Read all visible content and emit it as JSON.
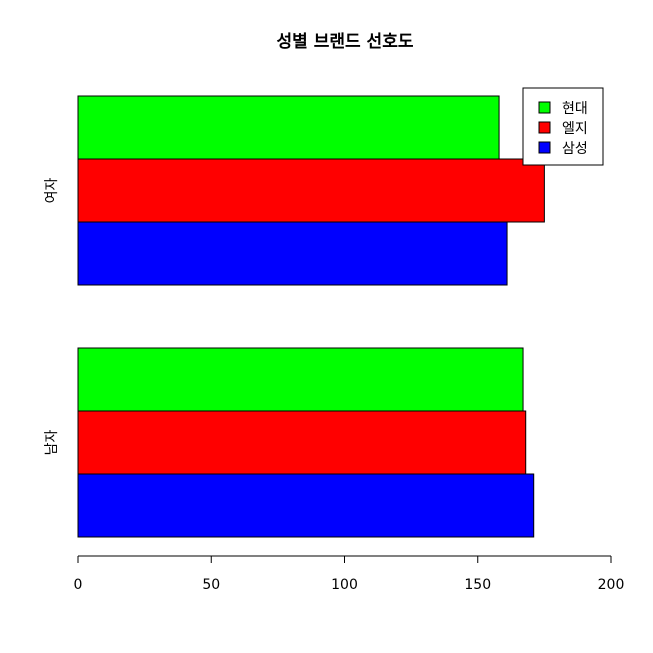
{
  "chart_data": {
    "type": "bar",
    "orientation": "horizontal",
    "title": "성별 브랜드 선호도",
    "xlabel": "",
    "ylabel": "",
    "xlim": [
      0,
      200
    ],
    "x_ticks": [
      0,
      50,
      100,
      150,
      200
    ],
    "categories": [
      "여자",
      "남자"
    ],
    "series": [
      {
        "name": "현대",
        "color": "#00ff00",
        "values": [
          158,
          167
        ]
      },
      {
        "name": "엘지",
        "color": "#ff0000",
        "values": [
          175,
          168
        ]
      },
      {
        "name": "삼성",
        "color": "#0000ff",
        "values": [
          161,
          171
        ]
      }
    ],
    "legend_position": "top-right",
    "grid": false
  }
}
